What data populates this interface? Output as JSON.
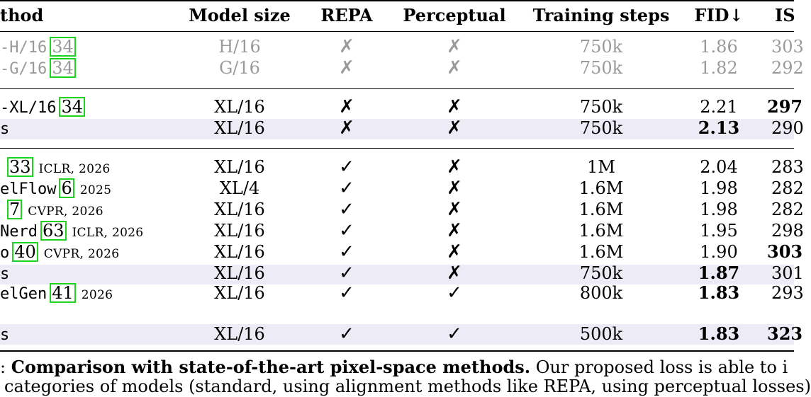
{
  "table": {
    "headers": {
      "method": "thod",
      "model_size": "Model size",
      "repa": "REPA",
      "perceptual": "Perceptual",
      "training_steps": "Training steps",
      "fid": "FID↓",
      "is": "IS"
    },
    "rows": [
      {
        "method": "-H/16",
        "cite": "34",
        "venue": "",
        "model_size": "H/16",
        "repa": "✗",
        "perceptual": "✗",
        "steps": "750k",
        "fid": "1.86",
        "is": "303"
      },
      {
        "method": "-G/16",
        "cite": "34",
        "venue": "",
        "model_size": "G/16",
        "repa": "✗",
        "perceptual": "✗",
        "steps": "750k",
        "fid": "1.82",
        "is": "292"
      },
      {
        "method": "-XL/16",
        "cite": "34",
        "venue": "",
        "model_size": "XL/16",
        "repa": "✗",
        "perceptual": "✗",
        "steps": "750k",
        "fid": "2.21",
        "is": "297"
      },
      {
        "method": "s",
        "cite": "",
        "venue": "",
        "model_size": "XL/16",
        "repa": "✗",
        "perceptual": "✗",
        "steps": "750k",
        "fid": "2.13",
        "is": "290"
      },
      {
        "method": "",
        "cite": "33",
        "venue": "ICLR, 2026",
        "model_size": "XL/16",
        "repa": "✓",
        "perceptual": "✗",
        "steps": "1M",
        "fid": "2.04",
        "is": "283"
      },
      {
        "method": "elFlow",
        "cite": "6",
        "venue": "2025",
        "model_size": "XL/4",
        "repa": "✓",
        "perceptual": "✗",
        "steps": "1.6M",
        "fid": "1.98",
        "is": "282"
      },
      {
        "method": "",
        "cite": "7",
        "venue": "CVPR, 2026",
        "model_size": "XL/16",
        "repa": "✓",
        "perceptual": "✗",
        "steps": "1.6M",
        "fid": "1.98",
        "is": "282"
      },
      {
        "method": "Nerd",
        "cite": "63",
        "venue": "ICLR, 2026",
        "model_size": "XL/16",
        "repa": "✓",
        "perceptual": "✗",
        "steps": "1.6M",
        "fid": "1.95",
        "is": "298"
      },
      {
        "method": "o",
        "cite": "40",
        "venue": "CVPR, 2026",
        "model_size": "XL/16",
        "repa": "✓",
        "perceptual": "✗",
        "steps": "1.6M",
        "fid": "1.90",
        "is": "303"
      },
      {
        "method": "s",
        "cite": "",
        "venue": "",
        "model_size": "XL/16",
        "repa": "✓",
        "perceptual": "✗",
        "steps": "750k",
        "fid": "1.87",
        "is": "301"
      },
      {
        "method": "elGen",
        "cite": "41",
        "venue": "2026",
        "model_size": "XL/16",
        "repa": "✓",
        "perceptual": "✓",
        "steps": "800k",
        "fid": "1.83",
        "is": "293"
      },
      {
        "method": "s",
        "cite": "",
        "venue": "",
        "model_size": "XL/16",
        "repa": "✓",
        "perceptual": "✓",
        "steps": "500k",
        "fid": "1.83",
        "is": "323"
      }
    ]
  },
  "caption": {
    "prefix": ":",
    "bold": "Comparison with state-of-the-art pixel-space methods.",
    "rest": "Our proposed loss is able to i",
    "line2": "categories of models (standard, using alignment methods like REPA, using perceptual losses)"
  }
}
